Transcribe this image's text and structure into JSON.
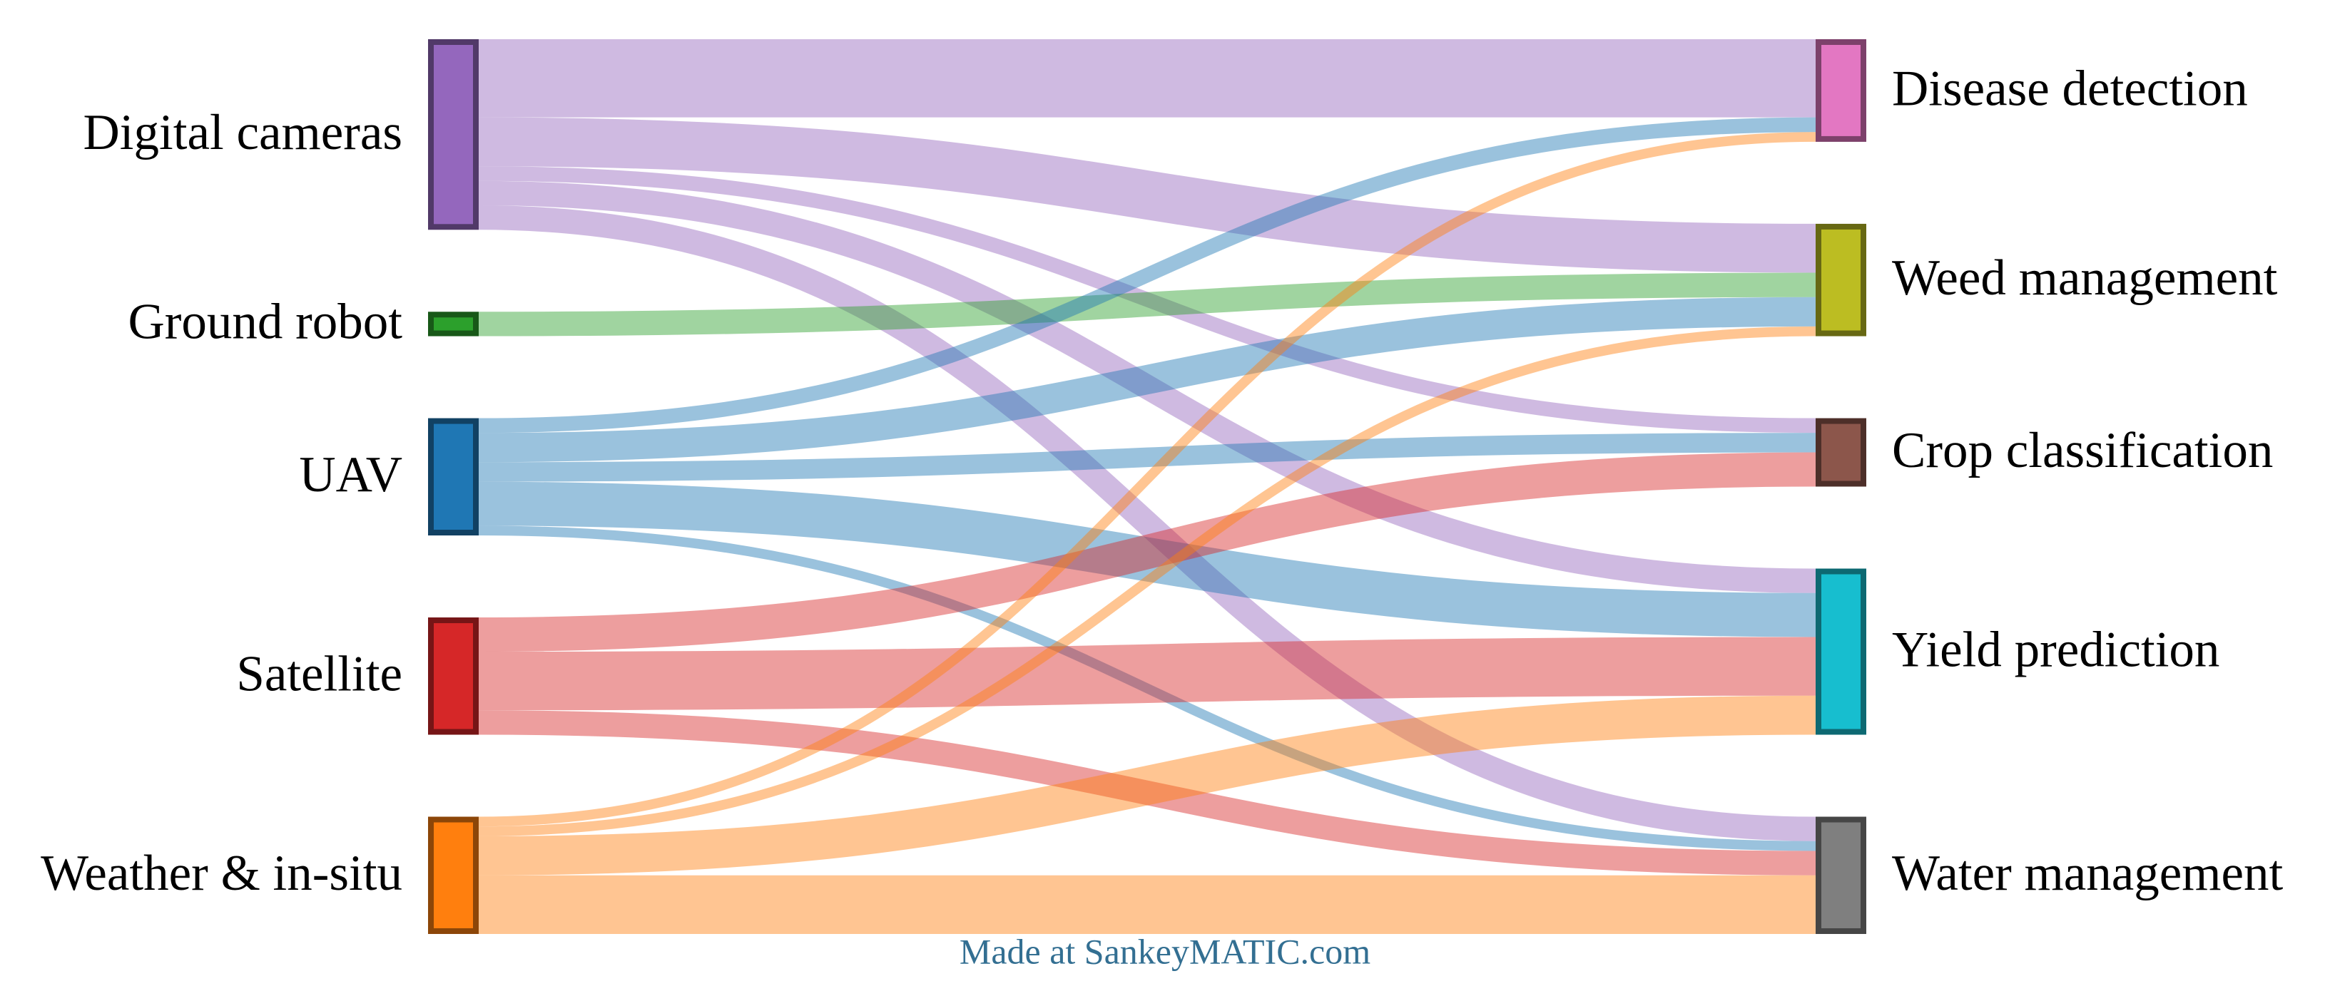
{
  "chart_data": {
    "type": "sankey",
    "nodes": [
      {
        "name": "Digital cameras",
        "color": "#9467bd",
        "column": "left"
      },
      {
        "name": "Ground robot",
        "color": "#2ca02c",
        "column": "left"
      },
      {
        "name": "UAV",
        "color": "#1f77b4",
        "column": "left"
      },
      {
        "name": "Satellite",
        "color": "#d62728",
        "column": "left"
      },
      {
        "name": "Weather & in-situ",
        "color": "#ff7f0e",
        "column": "left"
      },
      {
        "name": "Disease detection",
        "color": "#e377c2",
        "column": "right"
      },
      {
        "name": "Weed management",
        "color": "#bcbd22",
        "column": "right"
      },
      {
        "name": "Crop classification",
        "color": "#8c564b",
        "column": "right"
      },
      {
        "name": "Yield prediction",
        "color": "#17becf",
        "column": "right"
      },
      {
        "name": "Water management",
        "color": "#7f7f7f",
        "column": "right"
      }
    ],
    "links": [
      {
        "source": "Digital cameras",
        "target": "Disease detection",
        "value": 16
      },
      {
        "source": "Digital cameras",
        "target": "Weed management",
        "value": 10
      },
      {
        "source": "Digital cameras",
        "target": "Crop classification",
        "value": 3
      },
      {
        "source": "Digital cameras",
        "target": "Yield prediction",
        "value": 5
      },
      {
        "source": "Digital cameras",
        "target": "Water management",
        "value": 5
      },
      {
        "source": "Ground robot",
        "target": "Weed management",
        "value": 5
      },
      {
        "source": "UAV",
        "target": "Disease detection",
        "value": 3
      },
      {
        "source": "UAV",
        "target": "Weed management",
        "value": 6
      },
      {
        "source": "UAV",
        "target": "Crop classification",
        "value": 4
      },
      {
        "source": "UAV",
        "target": "Yield prediction",
        "value": 9
      },
      {
        "source": "UAV",
        "target": "Water management",
        "value": 2
      },
      {
        "source": "Satellite",
        "target": "Crop classification",
        "value": 7
      },
      {
        "source": "Satellite",
        "target": "Yield prediction",
        "value": 12
      },
      {
        "source": "Satellite",
        "target": "Water management",
        "value": 5
      },
      {
        "source": "Weather & in-situ",
        "target": "Disease detection",
        "value": 2
      },
      {
        "source": "Weather & in-situ",
        "target": "Weed management",
        "value": 2
      },
      {
        "source": "Weather & in-situ",
        "target": "Yield prediction",
        "value": 8
      },
      {
        "source": "Weather & in-situ",
        "target": "Water management",
        "value": 12
      }
    ],
    "link_opacity": 0.45,
    "credit": "Made at SankeyMATIC.com"
  }
}
